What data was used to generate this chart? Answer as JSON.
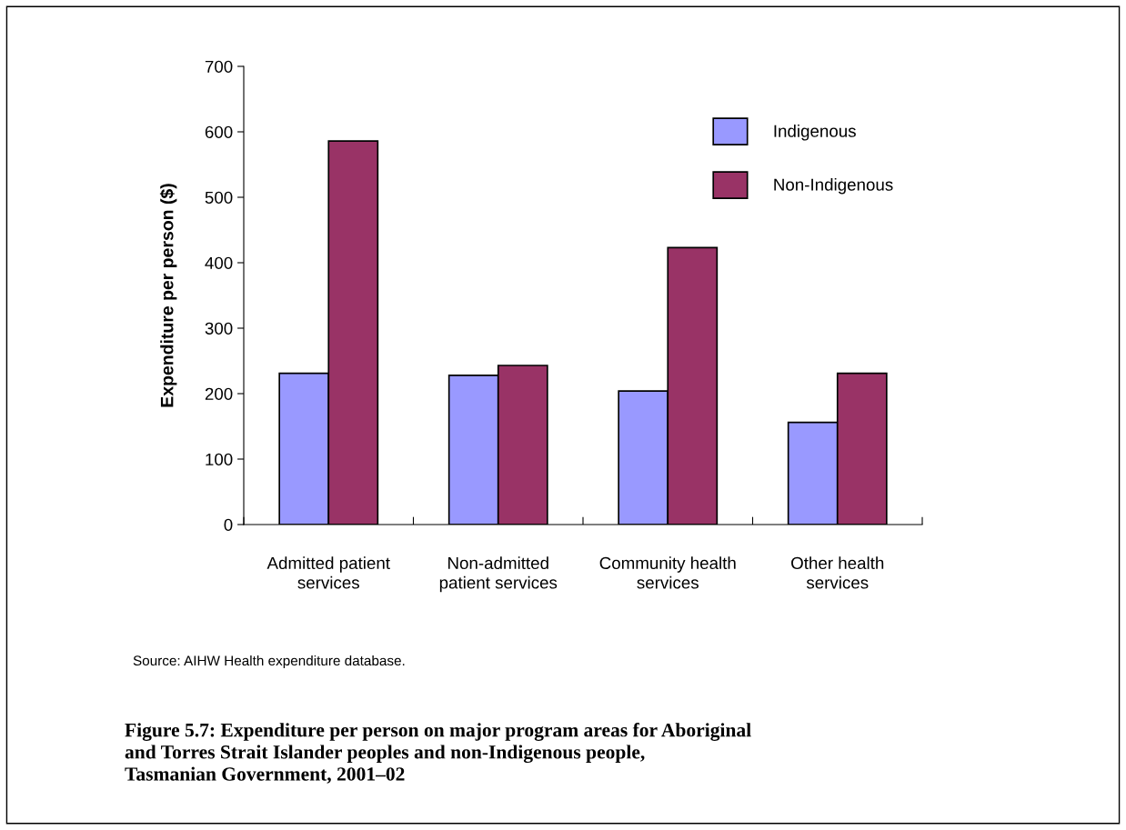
{
  "chart_data": {
    "type": "bar",
    "title": "Figure 5.7: Expenditure per person on major program areas for Aboriginal\nand Torres Strait Islander peoples and non-Indigenous people,\nTasmanian Government, 2001–02",
    "ylabel": "Expenditure per person ($)",
    "categories": [
      "Admitted patient\nservices",
      "Non-admitted\npatient services",
      "Community health\nservices",
      "Other health\nservices"
    ],
    "series": [
      {
        "name": "Indigenous",
        "color": "#9999ff",
        "values": [
          231,
          228,
          204,
          156
        ]
      },
      {
        "name": "Non-Indigenous",
        "color": "#993366",
        "values": [
          586,
          243,
          423,
          231
        ]
      }
    ],
    "ylim": [
      0,
      700
    ],
    "yticks": [
      0,
      100,
      200,
      300,
      400,
      500,
      600,
      700
    ],
    "grid": false,
    "legend": "top right",
    "annotations": [
      "Source: AIHW Health expenditure database."
    ]
  }
}
